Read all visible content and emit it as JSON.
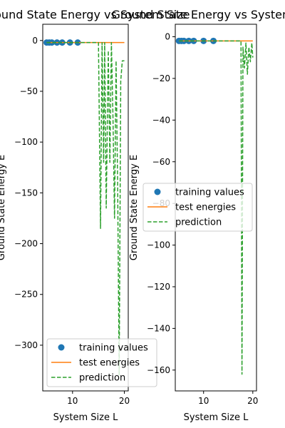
{
  "chart_data": [
    {
      "type": "line",
      "title": "Ground State Energy vs System Size",
      "xlabel": "System Size L",
      "ylabel": "Ground State Energy E",
      "xlim": [
        4.25,
        20.75
      ],
      "ylim": [
        -345,
        16
      ],
      "xticks": [
        10,
        20
      ],
      "yticks": [
        0,
        -50,
        -100,
        -150,
        -200,
        -250,
        -300
      ],
      "legend_position": "lower-right",
      "series": [
        {
          "name": "training values",
          "style": "markers",
          "color": "#1f77b4",
          "x": [
            5,
            5.5,
            6,
            7,
            8,
            9.5,
            11
          ],
          "y": [
            -2,
            -2,
            -2,
            -2,
            -2,
            -2,
            -2
          ]
        },
        {
          "name": "test energies",
          "style": "line",
          "color": "#ff7f0e",
          "x": [
            5,
            8,
            11,
            14,
            17,
            20
          ],
          "y": [
            -2,
            -2,
            -2,
            -2,
            -2,
            -2
          ]
        },
        {
          "name": "prediction",
          "style": "dashed",
          "color": "#2ca02c",
          "x": [
            5,
            11,
            13,
            15,
            15.4,
            15.7,
            16,
            16.2,
            16.5,
            16.9,
            17.2,
            17.5,
            17.8,
            18.1,
            18.4,
            18.7,
            19,
            19.3,
            19.6,
            20
          ],
          "y": [
            -2,
            -2,
            -2,
            -2,
            -185,
            -2,
            -120,
            -2,
            -165,
            -10,
            -120,
            -2,
            -75,
            -175,
            -20,
            -140,
            -330,
            -40,
            -20,
            -20
          ]
        }
      ]
    },
    {
      "type": "line",
      "title": "Ground State Energy vs System Size",
      "xlabel": "System Size L",
      "ylabel": "Ground State Energy E",
      "xlim": [
        4.25,
        20.75
      ],
      "ylim": [
        -170,
        6
      ],
      "xticks": [
        10,
        20
      ],
      "yticks": [
        0,
        -20,
        -40,
        -60,
        -80,
        -100,
        -120,
        -140,
        -160
      ],
      "legend_position": "upper-right",
      "series": [
        {
          "name": "training values",
          "style": "markers",
          "color": "#1f77b4",
          "x": [
            5,
            5.5,
            6,
            7,
            8,
            10,
            12
          ],
          "y": [
            -2,
            -2,
            -2,
            -2,
            -2,
            -2,
            -2
          ]
        },
        {
          "name": "test energies",
          "style": "line",
          "color": "#ff7f0e",
          "x": [
            5,
            8,
            11,
            14,
            17,
            20
          ],
          "y": [
            -2,
            -2,
            -2,
            -2,
            -2,
            -2
          ]
        },
        {
          "name": "prediction",
          "style": "dashed",
          "color": "#2ca02c",
          "x": [
            5,
            12,
            15,
            17.6,
            17.8,
            18.0,
            18.3,
            18.6,
            18.9,
            19.2,
            19.5,
            19.8,
            20
          ],
          "y": [
            -2,
            -2,
            -2,
            -2,
            -162,
            -5,
            -15,
            -3,
            -18,
            -5,
            -12,
            -3,
            -10
          ]
        }
      ]
    }
  ]
}
